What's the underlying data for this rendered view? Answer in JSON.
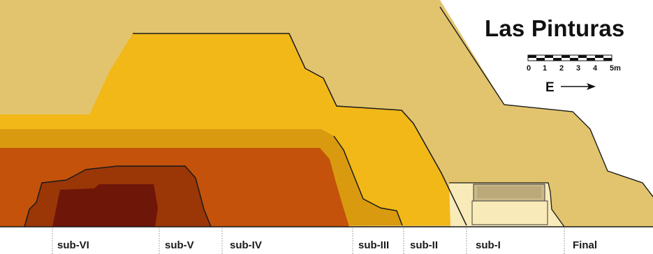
{
  "title": "Las Pinturas",
  "scale": {
    "ticks": [
      "0",
      "1",
      "2",
      "3",
      "4",
      "5m"
    ]
  },
  "direction": {
    "label": "E"
  },
  "phases": [
    {
      "label": "sub-VI"
    },
    {
      "label": "sub-V"
    },
    {
      "label": "sub-IV"
    },
    {
      "label": "sub-III"
    },
    {
      "label": "sub-II"
    },
    {
      "label": "sub-I"
    },
    {
      "label": "Final"
    }
  ],
  "colors": {
    "final": "#e2c46e",
    "sub1": "#f8ebb9",
    "sub2": "#f2b818",
    "sub3": "#d99a0f",
    "sub4": "#c4520a",
    "sub5": "#9b3607",
    "sub6": "#6e1608",
    "outline": "#1a1a1a"
  }
}
